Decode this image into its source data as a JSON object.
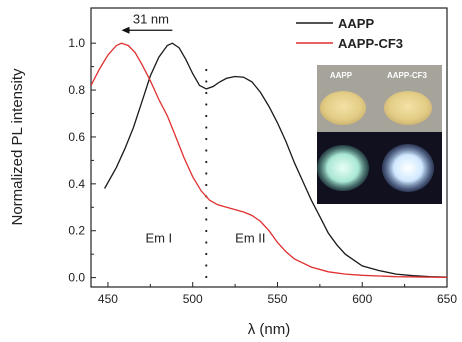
{
  "chart_data": {
    "type": "line",
    "xlabel": "λ (nm)",
    "ylabel": "Normalized PL intensity",
    "xlim": [
      440,
      650
    ],
    "ylim": [
      -0.04,
      1.15
    ],
    "x_ticks": [
      450,
      500,
      550,
      600,
      650
    ],
    "y_ticks": [
      0.0,
      0.2,
      0.4,
      0.6,
      0.8,
      1.0
    ],
    "x_tick_labels": [
      "450",
      "500",
      "550",
      "600",
      "650"
    ],
    "y_tick_labels": [
      "0.0",
      "0.2",
      "0.4",
      "0.6",
      "0.8",
      "1.0"
    ],
    "grid": false,
    "legend_position": "top-right",
    "series": [
      {
        "name": "AAPP",
        "color": "#1a1a1a",
        "points": [
          [
            448,
            0.38
          ],
          [
            455,
            0.47
          ],
          [
            460,
            0.55
          ],
          [
            465,
            0.64
          ],
          [
            470,
            0.75
          ],
          [
            475,
            0.86
          ],
          [
            480,
            0.94
          ],
          [
            485,
            0.99
          ],
          [
            488,
            1.0
          ],
          [
            492,
            0.98
          ],
          [
            496,
            0.93
          ],
          [
            500,
            0.87
          ],
          [
            504,
            0.82
          ],
          [
            508,
            0.805
          ],
          [
            512,
            0.815
          ],
          [
            516,
            0.835
          ],
          [
            520,
            0.85
          ],
          [
            525,
            0.858
          ],
          [
            530,
            0.855
          ],
          [
            535,
            0.835
          ],
          [
            540,
            0.79
          ],
          [
            545,
            0.73
          ],
          [
            550,
            0.66
          ],
          [
            555,
            0.58
          ],
          [
            560,
            0.49
          ],
          [
            565,
            0.41
          ],
          [
            570,
            0.33
          ],
          [
            575,
            0.26
          ],
          [
            580,
            0.19
          ],
          [
            585,
            0.14
          ],
          [
            590,
            0.1
          ],
          [
            600,
            0.05
          ],
          [
            610,
            0.03
          ],
          [
            620,
            0.015
          ],
          [
            630,
            0.008
          ],
          [
            640,
            0.004
          ],
          [
            650,
            0.002
          ]
        ]
      },
      {
        "name": "AAPP-CF3",
        "color": "#e03030",
        "points": [
          [
            440,
            0.82
          ],
          [
            445,
            0.89
          ],
          [
            450,
            0.95
          ],
          [
            455,
            0.99
          ],
          [
            458,
            1.0
          ],
          [
            462,
            0.99
          ],
          [
            466,
            0.96
          ],
          [
            470,
            0.91
          ],
          [
            475,
            0.84
          ],
          [
            480,
            0.76
          ],
          [
            485,
            0.69
          ],
          [
            490,
            0.6
          ],
          [
            495,
            0.51
          ],
          [
            500,
            0.43
          ],
          [
            505,
            0.37
          ],
          [
            510,
            0.33
          ],
          [
            515,
            0.31
          ],
          [
            520,
            0.3
          ],
          [
            525,
            0.29
          ],
          [
            530,
            0.28
          ],
          [
            535,
            0.265
          ],
          [
            540,
            0.24
          ],
          [
            545,
            0.2
          ],
          [
            550,
            0.15
          ],
          [
            555,
            0.11
          ],
          [
            560,
            0.08
          ],
          [
            570,
            0.045
          ],
          [
            580,
            0.025
          ],
          [
            590,
            0.015
          ],
          [
            600,
            0.01
          ],
          [
            620,
            0.004
          ],
          [
            650,
            0.001
          ]
        ]
      }
    ],
    "divider_x": 508,
    "annotations": {
      "arrow_label": "31 nm",
      "arrow_from_x": 488,
      "arrow_to_x": 458,
      "arrow_y": 1.055,
      "region_left": "Em I",
      "region_right": "Em II",
      "region_left_x": 480,
      "region_right_x": 534,
      "region_y": 0.15
    },
    "inset": {
      "label_left": "AAPP",
      "label_right": "AAPP-CF3",
      "top_background": "#a6a39b",
      "powder_color": "#e6d089",
      "bottom_background": "#10101e",
      "glow_left": "#c9f1e5",
      "glow_right": "#d8f0ff"
    }
  }
}
